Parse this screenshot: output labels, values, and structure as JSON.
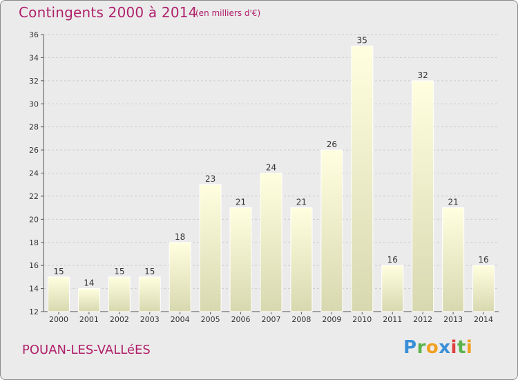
{
  "title": "Contingents 2000 à 2014",
  "unit_note": "(en milliers d'€)",
  "commune": "POUAN-LES-VALLéES",
  "logo_text": "Proxiti",
  "colors": {
    "title": "#b0206a",
    "bar_top": "#ffffe0",
    "bar_bottom": "#d8d8b0",
    "panel_bg": "#ebebeb",
    "grid": "#cccccc"
  },
  "chart_data": {
    "type": "bar",
    "title": "Contingents 2000 à 2014",
    "subtitle": "(en milliers d'€)",
    "categories": [
      "2000",
      "2001",
      "2002",
      "2003",
      "2004",
      "2005",
      "2006",
      "2007",
      "2008",
      "2009",
      "2010",
      "2011",
      "2012",
      "2013",
      "2014"
    ],
    "values": [
      15,
      14,
      15,
      15,
      18,
      23,
      21,
      24,
      21,
      26,
      35,
      16,
      32,
      21,
      16
    ],
    "ylim": [
      12,
      36
    ],
    "yticks": [
      12,
      14,
      16,
      18,
      20,
      22,
      24,
      26,
      28,
      30,
      32,
      34,
      36
    ],
    "grid": true,
    "data_labels": true
  }
}
